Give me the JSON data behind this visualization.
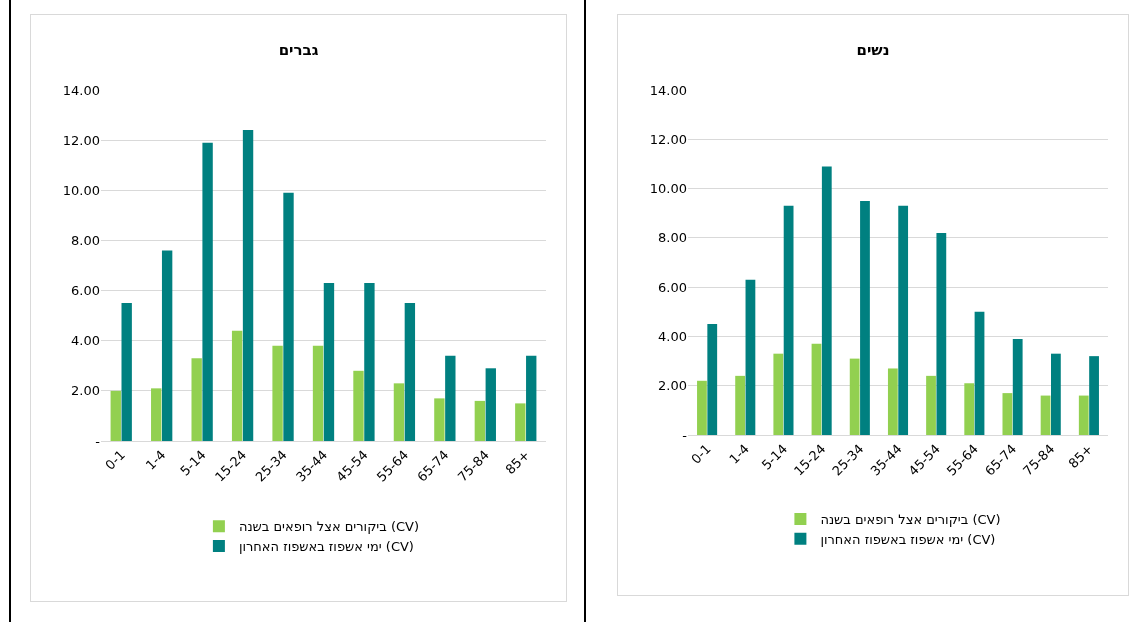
{
  "chart_data": [
    {
      "type": "bar",
      "title": "גברים",
      "categories": [
        "0-1",
        "1-4",
        "5-14",
        "15-24",
        "25-34",
        "35-44",
        "45-54",
        "55-64",
        "65-74",
        "75-84",
        "85+"
      ],
      "series": [
        {
          "name": "ביקורים אצל רופאים בשנה (CV)",
          "color": "#92d050",
          "values": [
            2.0,
            2.1,
            3.3,
            4.4,
            3.8,
            3.8,
            2.8,
            2.3,
            1.7,
            1.6,
            1.5
          ]
        },
        {
          "name": "ימי אשפוז באשפוז האחרון (CV)",
          "color": "#008080",
          "values": [
            5.5,
            7.6,
            11.9,
            12.4,
            9.9,
            6.3,
            6.3,
            5.5,
            3.4,
            2.9,
            3.4
          ]
        }
      ],
      "ylim": [
        0,
        14
      ],
      "yticks": [
        {
          "value": 0,
          "label": "-"
        },
        {
          "value": 2,
          "label": "2.00"
        },
        {
          "value": 4,
          "label": "4.00"
        },
        {
          "value": 6,
          "label": "6.00"
        },
        {
          "value": 8,
          "label": "8.00"
        },
        {
          "value": 10,
          "label": "10.00"
        },
        {
          "value": 12,
          "label": "12.00"
        },
        {
          "value": 14,
          "label": "14.00"
        }
      ],
      "grid": "y",
      "legend": "bottom"
    },
    {
      "type": "bar",
      "title": "נשים",
      "categories": [
        "0-1",
        "1-4",
        "5-14",
        "15-24",
        "25-34",
        "35-44",
        "45-54",
        "55-64",
        "65-74",
        "75-84",
        "85+"
      ],
      "series": [
        {
          "name": "ביקורים אצל רופאים בשנה (CV)",
          "color": "#92d050",
          "values": [
            2.2,
            2.4,
            3.3,
            3.7,
            3.1,
            2.7,
            2.4,
            2.1,
            1.7,
            1.6,
            1.6
          ]
        },
        {
          "name": "ימי אשפוז באשפוז האחרון (CV)",
          "color": "#008080",
          "values": [
            4.5,
            6.3,
            9.3,
            10.9,
            9.5,
            9.3,
            8.2,
            5.0,
            3.9,
            3.3,
            3.2
          ]
        }
      ],
      "ylim": [
        0,
        14
      ],
      "yticks": [
        {
          "value": 0,
          "label": "-"
        },
        {
          "value": 2,
          "label": "2.00"
        },
        {
          "value": 4,
          "label": "4.00"
        },
        {
          "value": 6,
          "label": "6.00"
        },
        {
          "value": 8,
          "label": "8.00"
        },
        {
          "value": 10,
          "label": "10.00"
        },
        {
          "value": 12,
          "label": "12.00"
        },
        {
          "value": 14,
          "label": "14.00"
        }
      ],
      "grid": "y",
      "legend": "bottom"
    }
  ]
}
